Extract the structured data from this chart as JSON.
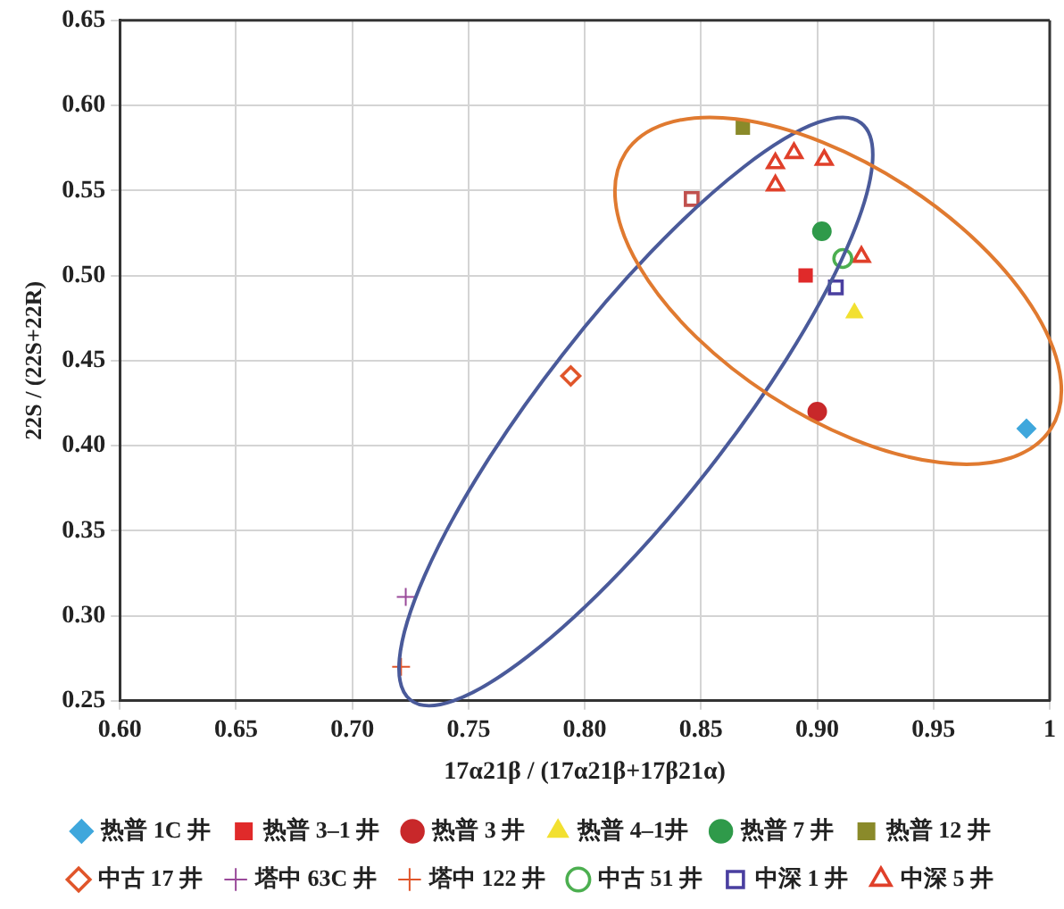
{
  "chart_data": {
    "type": "scatter",
    "xlabel": "17α21β / (17α21β+17β21α)",
    "ylabel": "22S / (22S+22R)",
    "xlim": [
      0.6,
      1.0
    ],
    "ylim": [
      0.25,
      0.65
    ],
    "xticks": [
      {
        "value": 0.6,
        "label": "0.60"
      },
      {
        "value": 0.65,
        "label": "0.65"
      },
      {
        "value": 0.7,
        "label": "0.70"
      },
      {
        "value": 0.75,
        "label": "0.75"
      },
      {
        "value": 0.8,
        "label": "0.80"
      },
      {
        "value": 0.85,
        "label": "0.85"
      },
      {
        "value": 0.9,
        "label": "0.90"
      },
      {
        "value": 0.95,
        "label": "0.95"
      },
      {
        "value": 1.0,
        "label": "1"
      }
    ],
    "yticks": [
      {
        "value": 0.25,
        "label": "0.25"
      },
      {
        "value": 0.3,
        "label": "0.30"
      },
      {
        "value": 0.35,
        "label": "0.35"
      },
      {
        "value": 0.4,
        "label": "0.40"
      },
      {
        "value": 0.45,
        "label": "0.45"
      },
      {
        "value": 0.5,
        "label": "0.50"
      },
      {
        "value": 0.55,
        "label": "0.55"
      },
      {
        "value": 0.6,
        "label": "0.60"
      },
      {
        "value": 0.65,
        "label": "0.65"
      }
    ],
    "grid": true,
    "legend": "bottom",
    "series": [
      {
        "name": "热普 1C 井",
        "color": "#3fa7dc",
        "marker": "diamond",
        "x": [
          0.99
        ],
        "values": [
          0.41
        ]
      },
      {
        "name": "热普 3–1 井",
        "color": "#e02a2a",
        "marker": "square",
        "x": [
          0.895
        ],
        "values": [
          0.5
        ]
      },
      {
        "name": "热普 3 井",
        "color": "#c8282a",
        "marker": "circle",
        "x": [
          0.9
        ],
        "values": [
          0.42
        ]
      },
      {
        "name": "热普 4–1井",
        "color": "#f2e030",
        "marker": "triangle",
        "x": [
          0.916
        ],
        "values": [
          0.478
        ]
      },
      {
        "name": "热普 7 井",
        "color": "#2f9a4a",
        "marker": "circle",
        "x": [
          0.902
        ],
        "values": [
          0.526
        ]
      },
      {
        "name": "热普 12 井",
        "color": "#8a8a2a",
        "marker": "square",
        "x": [
          0.868
        ],
        "values": [
          0.587
        ]
      },
      {
        "name": "中古 17 井",
        "color": "#e0552a",
        "marker": "diamond-open",
        "x": [
          0.794
        ],
        "values": [
          0.441
        ]
      },
      {
        "name": "塔中 63C 井",
        "color": "#9a4a9a",
        "marker": "cross",
        "x": [
          0.723
        ],
        "values": [
          0.311
        ]
      },
      {
        "name": "塔中 122 井",
        "color": "#e0552a",
        "marker": "cross",
        "x": [
          0.721
        ],
        "values": [
          0.27
        ]
      },
      {
        "name": "中古 51 井",
        "color": "#4caf50",
        "marker": "circle-open",
        "x": [
          0.911
        ],
        "values": [
          0.51
        ]
      },
      {
        "name": "中深 1 井",
        "color": "#4a3fa0",
        "colors": [
          "#4a3fa0",
          "#c0504d"
        ],
        "marker": "square-open",
        "x": [
          0.908,
          0.846
        ],
        "values": [
          0.493,
          0.545
        ]
      },
      {
        "name": "中深 5 井",
        "color": "#e0402a",
        "marker": "triangle-open",
        "x": [
          0.882,
          0.89,
          0.903,
          0.882,
          0.919
        ],
        "values": [
          0.566,
          0.572,
          0.568,
          0.553,
          0.511
        ]
      }
    ]
  }
}
